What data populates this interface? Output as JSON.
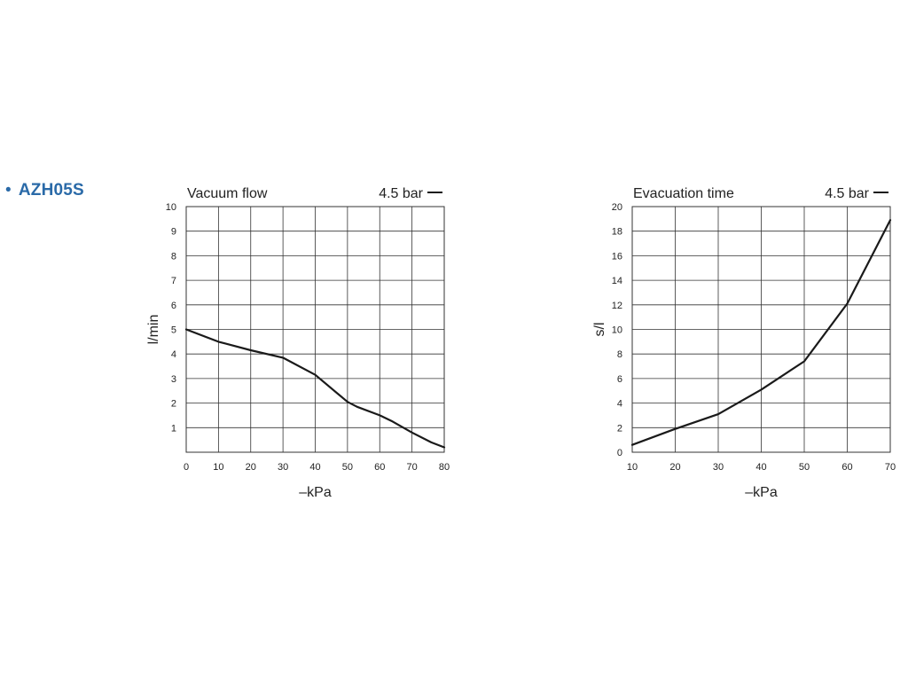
{
  "model": {
    "bullet": "•",
    "name": "AZH05S"
  },
  "chart_data": [
    {
      "type": "line",
      "title": "Vacuum flow",
      "legend_text": "4.5 bar",
      "legend_placement": "top-right",
      "xlabel": "–kPa",
      "ylabel": "l/min",
      "xlim": [
        0,
        80
      ],
      "ylim": [
        0,
        10
      ],
      "xticks": [
        0,
        10,
        20,
        30,
        40,
        50,
        60,
        70,
        80
      ],
      "yticks": [
        1,
        2,
        3,
        4,
        5,
        6,
        7,
        8,
        9,
        10
      ],
      "grid": true,
      "series": [
        {
          "x": [
            0,
            10,
            20,
            30,
            40,
            50,
            53,
            60,
            64,
            70,
            76,
            80
          ],
          "y": [
            5.0,
            4.5,
            4.15,
            3.85,
            3.15,
            2.05,
            1.85,
            1.5,
            1.25,
            0.8,
            0.4,
            0.2
          ]
        }
      ]
    },
    {
      "type": "line",
      "title": "Evacuation time",
      "legend_text": "4.5 bar",
      "legend_placement": "top-right",
      "xlabel": "–kPa",
      "ylabel": "s/l",
      "xlim": [
        10,
        70
      ],
      "ylim": [
        0,
        20
      ],
      "xticks": [
        10,
        20,
        30,
        40,
        50,
        60,
        70
      ],
      "yticks": [
        0,
        2,
        4,
        6,
        8,
        10,
        12,
        14,
        16,
        18,
        20
      ],
      "grid": true,
      "series": [
        {
          "x": [
            10,
            20,
            30,
            40,
            50,
            60,
            70
          ],
          "y": [
            0.6,
            1.9,
            3.1,
            5.1,
            7.4,
            12.1,
            18.9
          ]
        }
      ]
    }
  ]
}
